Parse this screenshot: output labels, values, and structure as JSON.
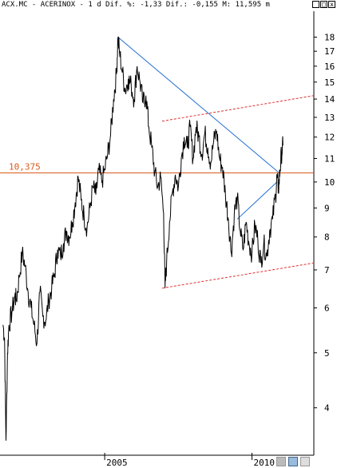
{
  "window": {
    "title": "ACX.MC - ACERINOX -  1 d Dif. %: -1,33 Dif.: -0,155 M: 11,595 m",
    "buttons": [
      {
        "name": "minimize-button",
        "glyph": "_"
      },
      {
        "name": "restore-button",
        "glyph": "□"
      },
      {
        "name": "close-button",
        "glyph": "x"
      }
    ]
  },
  "chart_data": {
    "type": "line",
    "title": "ACX.MC - ACERINOX",
    "xlabel": "",
    "ylabel": "",
    "yscale": "log",
    "ylim": [
      3.3,
      20
    ],
    "xlim": [
      2001.5,
      2012.1
    ],
    "x_ticks": [
      {
        "value": 2005,
        "label": "2005"
      },
      {
        "value": 2010,
        "label": "2010"
      }
    ],
    "y_ticks": [
      4,
      5,
      6,
      7,
      8,
      9,
      10,
      11,
      12,
      13,
      14,
      15,
      16,
      17,
      18
    ],
    "grid": false,
    "series": [
      {
        "color": "#000000",
        "points": [
          [
            2001.55,
            5.6
          ],
          [
            2001.6,
            5.3
          ],
          [
            2001.65,
            3.5
          ],
          [
            2001.7,
            5.0
          ],
          [
            2001.75,
            5.6
          ],
          [
            2001.85,
            5.9
          ],
          [
            2001.95,
            6.3
          ],
          [
            2002.0,
            6.2
          ],
          [
            2002.1,
            6.8
          ],
          [
            2002.2,
            7.5
          ],
          [
            2002.3,
            7.1
          ],
          [
            2002.4,
            6.4
          ],
          [
            2002.5,
            6.0
          ],
          [
            2002.6,
            5.6
          ],
          [
            2002.7,
            5.2
          ],
          [
            2002.8,
            6.4
          ],
          [
            2002.9,
            5.8
          ],
          [
            2003.0,
            5.7
          ],
          [
            2003.1,
            6.2
          ],
          [
            2003.2,
            6.5
          ],
          [
            2003.3,
            6.9
          ],
          [
            2003.4,
            7.6
          ],
          [
            2003.5,
            7.4
          ],
          [
            2003.6,
            7.8
          ],
          [
            2003.7,
            8.2
          ],
          [
            2003.8,
            8.0
          ],
          [
            2003.9,
            8.5
          ],
          [
            2004.0,
            9.2
          ],
          [
            2004.1,
            10.2
          ],
          [
            2004.2,
            9.3
          ],
          [
            2004.3,
            8.7
          ],
          [
            2004.4,
            8.3
          ],
          [
            2004.5,
            9.0
          ],
          [
            2004.6,
            9.8
          ],
          [
            2004.7,
            9.5
          ],
          [
            2004.8,
            10.5
          ],
          [
            2004.9,
            10.0
          ],
          [
            2005.0,
            10.5
          ],
          [
            2005.1,
            11.2
          ],
          [
            2005.2,
            12.1
          ],
          [
            2005.3,
            14.0
          ],
          [
            2005.4,
            15.5
          ],
          [
            2005.45,
            18.0
          ],
          [
            2005.5,
            17.0
          ],
          [
            2005.6,
            15.6
          ],
          [
            2005.7,
            14.5
          ],
          [
            2005.8,
            15.2
          ],
          [
            2005.9,
            14.8
          ],
          [
            2006.0,
            14.0
          ],
          [
            2006.1,
            16.0
          ],
          [
            2006.2,
            15.0
          ],
          [
            2006.3,
            13.8
          ],
          [
            2006.4,
            14.2
          ],
          [
            2006.5,
            12.5
          ],
          [
            2006.6,
            11.5
          ],
          [
            2006.7,
            10.4
          ],
          [
            2006.8,
            9.8
          ],
          [
            2006.9,
            10.2
          ],
          [
            2007.0,
            8.8
          ],
          [
            2007.05,
            6.5
          ],
          [
            2007.1,
            7.2
          ],
          [
            2007.2,
            8.5
          ],
          [
            2007.3,
            9.6
          ],
          [
            2007.4,
            10.3
          ],
          [
            2007.5,
            9.8
          ],
          [
            2007.6,
            11.0
          ],
          [
            2007.7,
            12.0
          ],
          [
            2007.8,
            11.5
          ],
          [
            2007.9,
            12.5
          ],
          [
            2008.0,
            11.0
          ],
          [
            2008.1,
            12.5
          ],
          [
            2008.2,
            12.0
          ],
          [
            2008.3,
            11.2
          ],
          [
            2008.4,
            12.2
          ],
          [
            2008.5,
            11.5
          ],
          [
            2008.6,
            10.8
          ],
          [
            2008.7,
            11.8
          ],
          [
            2008.8,
            12.3
          ],
          [
            2008.9,
            11.0
          ],
          [
            2009.0,
            10.6
          ],
          [
            2009.1,
            9.5
          ],
          [
            2009.2,
            8.6
          ],
          [
            2009.3,
            7.5
          ],
          [
            2009.4,
            8.8
          ],
          [
            2009.5,
            9.4
          ],
          [
            2009.6,
            8.2
          ],
          [
            2009.7,
            7.6
          ],
          [
            2009.8,
            8.5
          ],
          [
            2009.9,
            7.8
          ],
          [
            2010.0,
            7.5
          ],
          [
            2010.1,
            8.4
          ],
          [
            2010.2,
            7.9
          ],
          [
            2010.3,
            7.2
          ],
          [
            2010.4,
            7.8
          ],
          [
            2010.5,
            7.4
          ],
          [
            2010.6,
            8.2
          ],
          [
            2010.7,
            8.6
          ],
          [
            2010.8,
            9.5
          ],
          [
            2010.85,
            10.2
          ],
          [
            2010.9,
            9.7
          ],
          [
            2010.95,
            10.5
          ],
          [
            2011.0,
            11.2
          ],
          [
            2011.05,
            11.6
          ]
        ]
      }
    ],
    "trendlines": [
      {
        "color": "#1f6fd1",
        "dash": false,
        "from": [
          2005.45,
          18.0
        ],
        "to": [
          2010.9,
          10.4
        ]
      },
      {
        "color": "#1f6fd1",
        "dash": false,
        "from": [
          2009.5,
          8.6
        ],
        "to": [
          2010.85,
          10.0
        ]
      },
      {
        "color": "#e03030",
        "dash": true,
        "from": [
          2006.95,
          12.8
        ],
        "to": [
          2012.1,
          14.2
        ]
      },
      {
        "color": "#e03030",
        "dash": true,
        "from": [
          2006.95,
          6.5
        ],
        "to": [
          2012.1,
          7.2
        ]
      }
    ],
    "horizontal_lines": [
      {
        "value": 10.375,
        "label": "10,375",
        "color": "#d85a1a"
      }
    ]
  },
  "statusbar": {
    "icons": [
      {
        "name": "drag-handle-icon"
      },
      {
        "name": "save-icon"
      },
      {
        "name": "export-icon"
      }
    ]
  }
}
